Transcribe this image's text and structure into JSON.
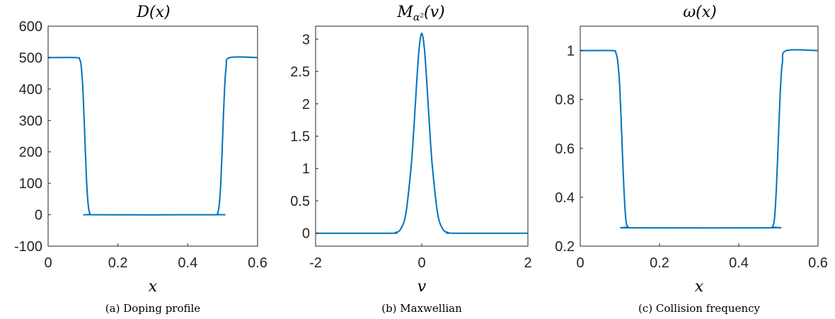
{
  "chart_data": [
    {
      "type": "line",
      "title": "D(x)",
      "xlabel": "x",
      "caption": "(a) Doping profile",
      "xlim": [
        0,
        0.6
      ],
      "ylim": [
        -100,
        600
      ],
      "xticks": [
        "0",
        "0.2",
        "0.4",
        "0.6"
      ],
      "yticks": [
        "-100",
        "0",
        "100",
        "200",
        "300",
        "400",
        "500",
        "600"
      ],
      "series": [
        {
          "color": "#0072BD",
          "x": [
            0,
            0.08,
            0.09,
            0.095,
            0.1,
            0.105,
            0.11,
            0.115,
            0.12,
            0.13,
            0.48,
            0.485,
            0.49,
            0.495,
            0.5,
            0.505,
            0.51,
            0.52,
            0.6
          ],
          "y": [
            500,
            500,
            495,
            470,
            390,
            250,
            110,
            30,
            3,
            0,
            0,
            3,
            30,
            110,
            250,
            390,
            470,
            500,
            500
          ]
        }
      ]
    },
    {
      "type": "line",
      "title": "M_{α²}(v)",
      "xlabel": "v",
      "caption": "(b) Maxwellian",
      "xlim": [
        -2,
        2
      ],
      "ylim": [
        -0.2,
        3.2
      ],
      "xticks": [
        "-2",
        "0",
        "2"
      ],
      "yticks": [
        "0",
        "0.5",
        "1",
        "1.5",
        "2",
        "2.5",
        "3"
      ],
      "series": [
        {
          "color": "#0072BD",
          "x": [
            -2,
            -0.6,
            -0.5,
            -0.4,
            -0.3,
            -0.2,
            -0.15,
            -0.1,
            -0.05,
            0,
            0.05,
            0.1,
            0.15,
            0.2,
            0.3,
            0.4,
            0.5,
            0.6,
            2
          ],
          "y": [
            0,
            0,
            0.01,
            0.06,
            0.3,
            1.03,
            1.6,
            2.27,
            2.85,
            3.09,
            2.85,
            2.27,
            1.6,
            1.03,
            0.3,
            0.06,
            0.01,
            0,
            0
          ]
        }
      ]
    },
    {
      "type": "line",
      "title": "ω(x)",
      "xlabel": "x",
      "caption": "(c) Collision frequency",
      "xlim": [
        0,
        0.6
      ],
      "ylim": [
        0.2,
        1.1
      ],
      "xticks": [
        "0",
        "0.2",
        "0.4",
        "0.6"
      ],
      "yticks": [
        "0.2",
        "0.4",
        "0.6",
        "0.8",
        "1"
      ],
      "series": [
        {
          "color": "#0072BD",
          "x": [
            0,
            0.08,
            0.09,
            0.095,
            0.1,
            0.105,
            0.11,
            0.115,
            0.12,
            0.13,
            0.48,
            0.485,
            0.49,
            0.495,
            0.5,
            0.505,
            0.51,
            0.52,
            0.6
          ],
          "y": [
            1,
            1,
            0.99,
            0.95,
            0.84,
            0.64,
            0.44,
            0.31,
            0.28,
            0.275,
            0.275,
            0.28,
            0.31,
            0.44,
            0.64,
            0.84,
            0.95,
            1,
            1
          ]
        }
      ]
    }
  ]
}
